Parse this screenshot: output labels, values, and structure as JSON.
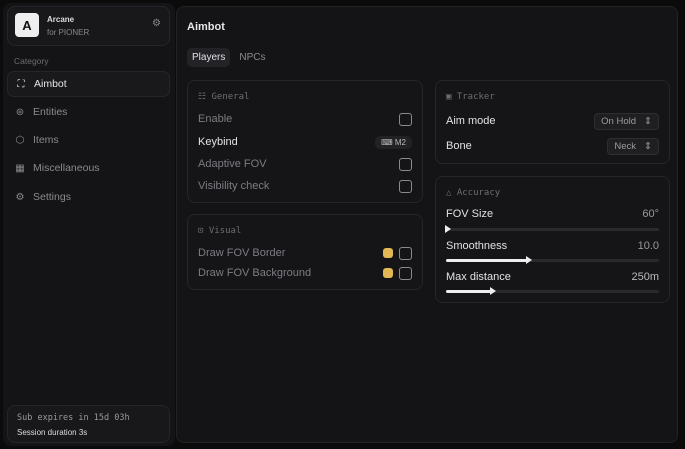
{
  "app": {
    "logo_letter": "A",
    "name": "Arcane",
    "subtitle": "for PIONER"
  },
  "sidebar": {
    "category_label": "Category",
    "items": [
      {
        "label": "Aimbot",
        "icon": "crosshair-icon",
        "active": true
      },
      {
        "label": "Entities",
        "icon": "entities-icon"
      },
      {
        "label": "Items",
        "icon": "cube-icon"
      },
      {
        "label": "Miscellaneous",
        "icon": "grid-icon"
      },
      {
        "label": "Settings",
        "icon": "gear-icon"
      }
    ],
    "footer": {
      "sub": "Sub expires in 15d 03h",
      "session": "Session duration 3s"
    }
  },
  "main": {
    "title": "Aimbot",
    "tabs": [
      {
        "label": "Players",
        "active": true
      },
      {
        "label": "NPCs"
      }
    ],
    "general": {
      "title": "General",
      "enable": "Enable",
      "keybind": "Keybind",
      "keybind_value": "M2",
      "adaptive": "Adaptive FOV",
      "visibility": "Visibility check"
    },
    "visual": {
      "title": "Visual",
      "border": "Draw FOV Border",
      "background": "Draw FOV Background",
      "color": "#e2b857"
    },
    "tracker": {
      "title": "Tracker",
      "aim_mode": "Aim mode",
      "aim_mode_value": "On Hold",
      "bone": "Bone",
      "bone_value": "Neck"
    },
    "accuracy": {
      "title": "Accuracy",
      "fov": "FOV Size",
      "fov_value": "60°",
      "fov_pct": 0,
      "smooth": "Smoothness",
      "smooth_value": "10.0",
      "smooth_pct": 38,
      "dist": "Max distance",
      "dist_value": "250m",
      "dist_pct": 21
    }
  }
}
